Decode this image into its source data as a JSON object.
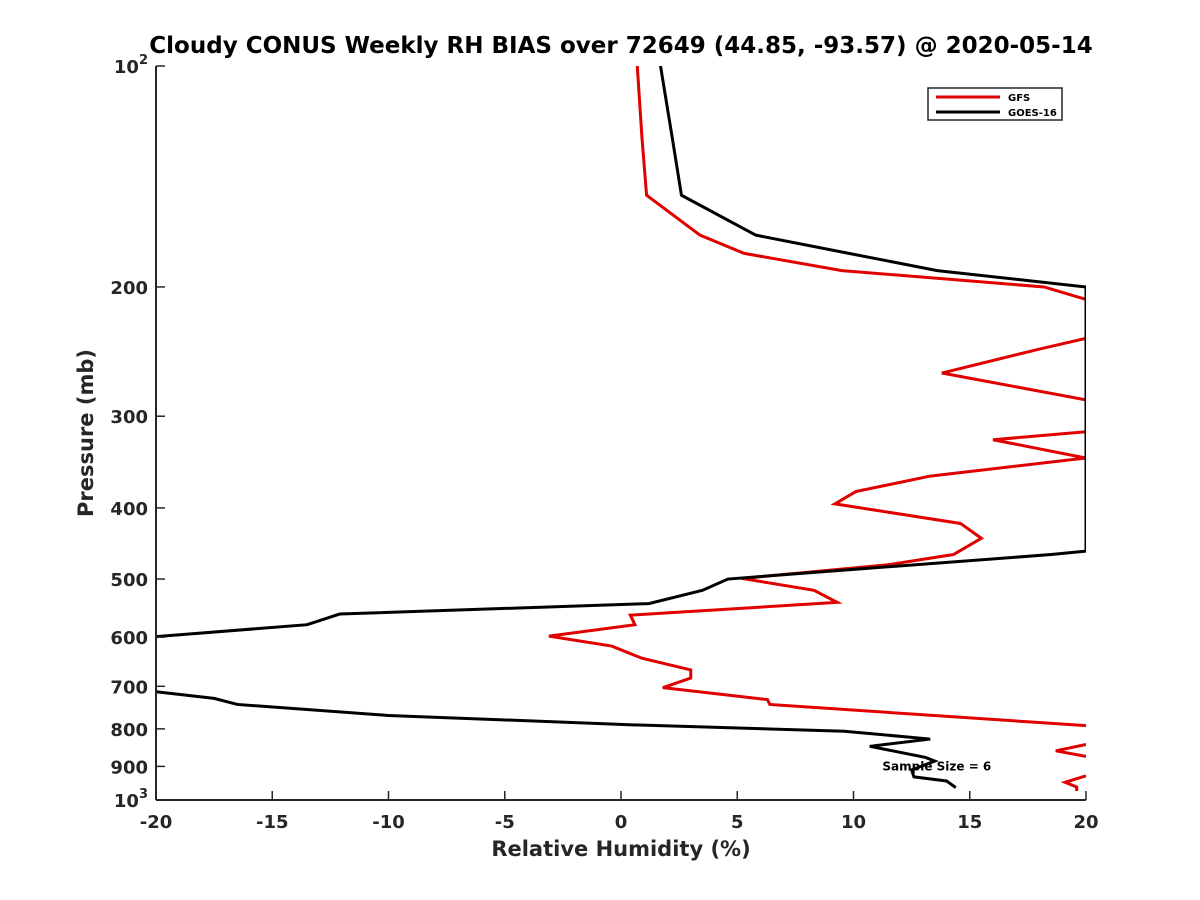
{
  "chart_data": {
    "type": "line",
    "title": "Cloudy CONUS Weekly RH BIAS over 72649 (44.85, -93.57) @ 2020-05-14",
    "xlabel": "Relative Humidity (%)",
    "ylabel": "Pressure (mb)",
    "xlim": [
      -20,
      20
    ],
    "ylim": [
      100,
      1000
    ],
    "yscale": "log",
    "y_reversed": true,
    "grid": false,
    "legend_position": "top-right",
    "x_ticks": [
      -20,
      -15,
      -10,
      -5,
      0,
      5,
      10,
      15,
      20
    ],
    "y_ticks": [
      {
        "value": 100,
        "base": "10",
        "exp": "2"
      },
      {
        "value": 200,
        "label": "200"
      },
      {
        "value": 300,
        "label": "300"
      },
      {
        "value": 400,
        "label": "400"
      },
      {
        "value": 500,
        "label": "500"
      },
      {
        "value": 600,
        "label": "600"
      },
      {
        "value": 700,
        "label": "700"
      },
      {
        "value": 800,
        "label": "800"
      },
      {
        "value": 900,
        "label": "900"
      },
      {
        "value": 1000,
        "base": "10",
        "exp": "3"
      }
    ],
    "annotation": {
      "text": "Sample Size = 6",
      "x": 15.5,
      "y": 900
    },
    "series": [
      {
        "name": "GFS",
        "color": "#e00000",
        "points": [
          [
            0.7,
            100
          ],
          [
            0.9,
            125
          ],
          [
            1.1,
            150
          ],
          [
            3.4,
            170
          ],
          [
            5.3,
            180
          ],
          [
            9.5,
            190
          ],
          [
            18.2,
            200
          ],
          [
            20,
            208
          ],
          [
            20,
            235
          ],
          [
            18,
            243
          ],
          [
            13.8,
            262
          ],
          [
            20,
            285
          ],
          [
            20,
            315
          ],
          [
            16,
            323
          ],
          [
            20,
            342
          ],
          [
            13.3,
            362
          ],
          [
            10.1,
            380
          ],
          [
            9.2,
            395
          ],
          [
            14.6,
            420
          ],
          [
            15.5,
            440
          ],
          [
            14.3,
            463
          ],
          [
            11.5,
            478
          ],
          [
            5.2,
            499
          ],
          [
            8.3,
            518
          ],
          [
            9.3,
            538
          ],
          [
            0.4,
            560
          ],
          [
            0.6,
            577
          ],
          [
            -3.1,
            598
          ],
          [
            -0.4,
            617
          ],
          [
            0.9,
            641
          ],
          [
            3.0,
            665
          ],
          [
            3.0,
            682
          ],
          [
            1.8,
            703
          ],
          [
            6.3,
            730
          ],
          [
            6.4,
            741
          ],
          [
            20,
            792
          ]
        ]
      },
      {
        "name": "GOES-16",
        "color": "#000000",
        "points": [
          [
            1.7,
            100
          ],
          [
            2.2,
            125
          ],
          [
            2.6,
            150
          ],
          [
            5.8,
            170
          ],
          [
            9.8,
            180
          ],
          [
            13.6,
            190
          ],
          [
            20,
            200
          ],
          [
            20,
            458
          ],
          [
            18.5,
            463
          ],
          [
            9.3,
            487
          ],
          [
            4.6,
            500
          ],
          [
            3.5,
            518
          ],
          [
            1.2,
            540
          ],
          [
            -12.1,
            558
          ],
          [
            -13.5,
            577
          ],
          [
            -20,
            599
          ]
        ]
      },
      {
        "name": "",
        "color": "#000000",
        "points": [
          [
            -20,
            712
          ],
          [
            -17.5,
            727
          ],
          [
            -16.5,
            741
          ],
          [
            -10,
            767
          ],
          [
            0.5,
            790
          ],
          [
            9.6,
            806
          ],
          [
            13.3,
            826
          ],
          [
            10.7,
            845
          ],
          [
            13.1,
            875
          ],
          [
            13.5,
            885
          ],
          [
            12.5,
            910
          ],
          [
            12.6,
            930
          ],
          [
            14.0,
            942
          ],
          [
            14.4,
            962
          ]
        ]
      },
      {
        "name": "",
        "color": "#e00000",
        "points": [
          [
            20,
            840
          ],
          [
            18.7,
            857
          ],
          [
            20,
            872
          ]
        ]
      },
      {
        "name": "",
        "color": "#e00000",
        "points": [
          [
            20,
            927
          ],
          [
            19.1,
            946
          ],
          [
            19.6,
            960
          ],
          [
            19.6,
            972
          ]
        ]
      }
    ]
  }
}
